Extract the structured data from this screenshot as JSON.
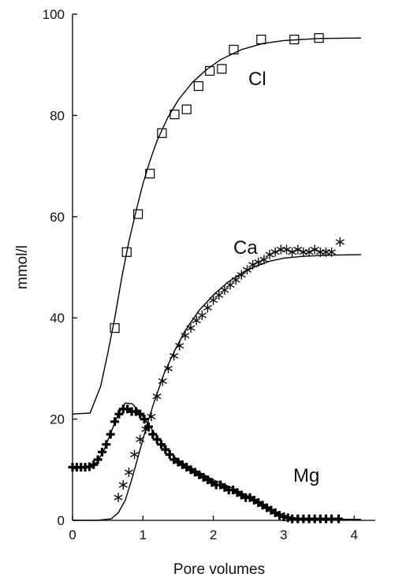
{
  "chart_data": {
    "type": "scatter",
    "xlabel": "Pore volumes",
    "ylabel": "mmol/l",
    "xlim": [
      0,
      4.3
    ],
    "ylim": [
      0,
      100
    ],
    "x_ticks": [
      "0",
      "1",
      "2",
      "3",
      "4"
    ],
    "y_ticks": [
      "0",
      "20",
      "40",
      "60",
      "80",
      "100"
    ],
    "grid": false,
    "series": [
      {
        "name": "Cl",
        "marker": "square",
        "points": [
          [
            0.6,
            38.0
          ],
          [
            0.77,
            53.0
          ],
          [
            0.93,
            60.5
          ],
          [
            1.1,
            68.5
          ],
          [
            1.27,
            76.5
          ],
          [
            1.45,
            80.2
          ],
          [
            1.62,
            81.2
          ],
          [
            1.79,
            85.8
          ],
          [
            1.95,
            88.8
          ],
          [
            2.12,
            89.2
          ],
          [
            2.29,
            93.0
          ],
          [
            2.68,
            95.0
          ],
          [
            3.15,
            95.0
          ],
          [
            3.5,
            95.3
          ]
        ],
        "model_curve": [
          [
            0.0,
            21.0
          ],
          [
            0.25,
            21.2
          ],
          [
            0.4,
            26.5
          ],
          [
            0.5,
            33.0
          ],
          [
            0.6,
            40.0
          ],
          [
            0.7,
            48.0
          ],
          [
            0.8,
            55.0
          ],
          [
            0.9,
            61.0
          ],
          [
            1.0,
            66.5
          ],
          [
            1.1,
            71.0
          ],
          [
            1.2,
            75.0
          ],
          [
            1.35,
            79.5
          ],
          [
            1.5,
            83.0
          ],
          [
            1.7,
            86.5
          ],
          [
            1.9,
            89.0
          ],
          [
            2.1,
            91.0
          ],
          [
            2.4,
            93.0
          ],
          [
            2.7,
            94.2
          ],
          [
            3.0,
            94.8
          ],
          [
            3.5,
            95.2
          ],
          [
            4.1,
            95.3
          ]
        ]
      },
      {
        "name": "Ca",
        "marker": "asterisk",
        "points": [
          [
            0.65,
            4.5
          ],
          [
            0.72,
            7.0
          ],
          [
            0.8,
            9.5
          ],
          [
            0.88,
            13.0
          ],
          [
            0.96,
            16.0
          ],
          [
            1.04,
            18.0
          ],
          [
            1.12,
            20.5
          ],
          [
            1.2,
            24.5
          ],
          [
            1.28,
            27.5
          ],
          [
            1.36,
            30.0
          ],
          [
            1.44,
            32.5
          ],
          [
            1.52,
            34.5
          ],
          [
            1.6,
            36.5
          ],
          [
            1.68,
            38.0
          ],
          [
            1.76,
            39.5
          ],
          [
            1.84,
            40.5
          ],
          [
            1.92,
            42.0
          ],
          [
            2.0,
            43.5
          ],
          [
            2.08,
            44.5
          ],
          [
            2.16,
            45.5
          ],
          [
            2.24,
            46.5
          ],
          [
            2.32,
            47.5
          ],
          [
            2.4,
            48.5
          ],
          [
            2.48,
            49.5
          ],
          [
            2.56,
            50.5
          ],
          [
            2.64,
            51.0
          ],
          [
            2.72,
            51.5
          ],
          [
            2.8,
            52.5
          ],
          [
            2.88,
            53.0
          ],
          [
            2.96,
            53.5
          ],
          [
            3.04,
            53.5
          ],
          [
            3.12,
            53.0
          ],
          [
            3.2,
            53.5
          ],
          [
            3.28,
            53.0
          ],
          [
            3.36,
            53.0
          ],
          [
            3.44,
            53.5
          ],
          [
            3.52,
            53.0
          ],
          [
            3.6,
            53.0
          ],
          [
            3.68,
            53.0
          ],
          [
            3.8,
            55.0
          ]
        ],
        "model_curve": [
          [
            0.0,
            0.0
          ],
          [
            0.35,
            0.0
          ],
          [
            0.55,
            0.3
          ],
          [
            0.65,
            1.5
          ],
          [
            0.75,
            4.0
          ],
          [
            0.85,
            8.5
          ],
          [
            0.95,
            13.5
          ],
          [
            1.05,
            18.5
          ],
          [
            1.15,
            23.0
          ],
          [
            1.3,
            29.0
          ],
          [
            1.45,
            33.5
          ],
          [
            1.6,
            37.5
          ],
          [
            1.8,
            41.5
          ],
          [
            2.0,
            44.5
          ],
          [
            2.2,
            47.0
          ],
          [
            2.4,
            48.8
          ],
          [
            2.6,
            50.2
          ],
          [
            2.8,
            51.2
          ],
          [
            3.0,
            51.8
          ],
          [
            3.3,
            52.2
          ],
          [
            3.7,
            52.4
          ],
          [
            4.1,
            52.5
          ]
        ]
      },
      {
        "name": "Mg",
        "marker": "plus",
        "points": [
          [
            0.0,
            10.5
          ],
          [
            0.06,
            10.5
          ],
          [
            0.12,
            10.5
          ],
          [
            0.18,
            10.5
          ],
          [
            0.24,
            10.6
          ],
          [
            0.3,
            11.0
          ],
          [
            0.36,
            12.0
          ],
          [
            0.42,
            13.5
          ],
          [
            0.48,
            15.0
          ],
          [
            0.54,
            17.0
          ],
          [
            0.6,
            19.5
          ],
          [
            0.66,
            21.0
          ],
          [
            0.72,
            22.0
          ],
          [
            0.78,
            22.0
          ],
          [
            0.84,
            21.5
          ],
          [
            0.9,
            21.5
          ],
          [
            0.96,
            21.0
          ],
          [
            1.02,
            20.0
          ],
          [
            1.08,
            18.5
          ],
          [
            1.14,
            17.0
          ],
          [
            1.2,
            16.0
          ],
          [
            1.26,
            15.0
          ],
          [
            1.32,
            14.0
          ],
          [
            1.38,
            13.0
          ],
          [
            1.44,
            12.0
          ],
          [
            1.5,
            11.5
          ],
          [
            1.56,
            11.0
          ],
          [
            1.62,
            10.5
          ],
          [
            1.68,
            10.0
          ],
          [
            1.74,
            9.5
          ],
          [
            1.8,
            9.0
          ],
          [
            1.86,
            8.5
          ],
          [
            1.92,
            8.0
          ],
          [
            1.98,
            7.5
          ],
          [
            2.04,
            7.0
          ],
          [
            2.1,
            7.0
          ],
          [
            2.16,
            6.5
          ],
          [
            2.22,
            6.0
          ],
          [
            2.28,
            6.0
          ],
          [
            2.34,
            5.5
          ],
          [
            2.4,
            5.0
          ],
          [
            2.46,
            4.5
          ],
          [
            2.52,
            4.5
          ],
          [
            2.58,
            4.0
          ],
          [
            2.64,
            3.5
          ],
          [
            2.7,
            3.0
          ],
          [
            2.76,
            2.5
          ],
          [
            2.82,
            2.0
          ],
          [
            2.88,
            1.5
          ],
          [
            2.94,
            1.0
          ],
          [
            3.0,
            0.7
          ],
          [
            3.06,
            0.5
          ],
          [
            3.12,
            0.3
          ],
          [
            3.2,
            0.3
          ],
          [
            3.28,
            0.3
          ],
          [
            3.36,
            0.3
          ],
          [
            3.44,
            0.3
          ],
          [
            3.52,
            0.3
          ],
          [
            3.6,
            0.3
          ],
          [
            3.68,
            0.3
          ],
          [
            3.78,
            0.3
          ]
        ],
        "model_curve": [
          [
            0.0,
            10.2
          ],
          [
            0.2,
            10.4
          ],
          [
            0.35,
            11.5
          ],
          [
            0.45,
            14.0
          ],
          [
            0.55,
            17.5
          ],
          [
            0.65,
            21.0
          ],
          [
            0.75,
            23.2
          ],
          [
            0.85,
            23.0
          ],
          [
            0.95,
            21.5
          ],
          [
            1.05,
            19.5
          ],
          [
            1.15,
            17.5
          ],
          [
            1.3,
            14.5
          ],
          [
            1.45,
            12.5
          ],
          [
            1.6,
            11.0
          ],
          [
            1.8,
            9.5
          ],
          [
            2.0,
            8.0
          ],
          [
            2.2,
            6.8
          ],
          [
            2.4,
            5.5
          ],
          [
            2.6,
            4.0
          ],
          [
            2.75,
            2.8
          ],
          [
            2.9,
            1.6
          ],
          [
            3.05,
            0.8
          ],
          [
            3.2,
            0.4
          ],
          [
            3.5,
            0.2
          ],
          [
            4.1,
            0.2
          ]
        ]
      }
    ]
  }
}
